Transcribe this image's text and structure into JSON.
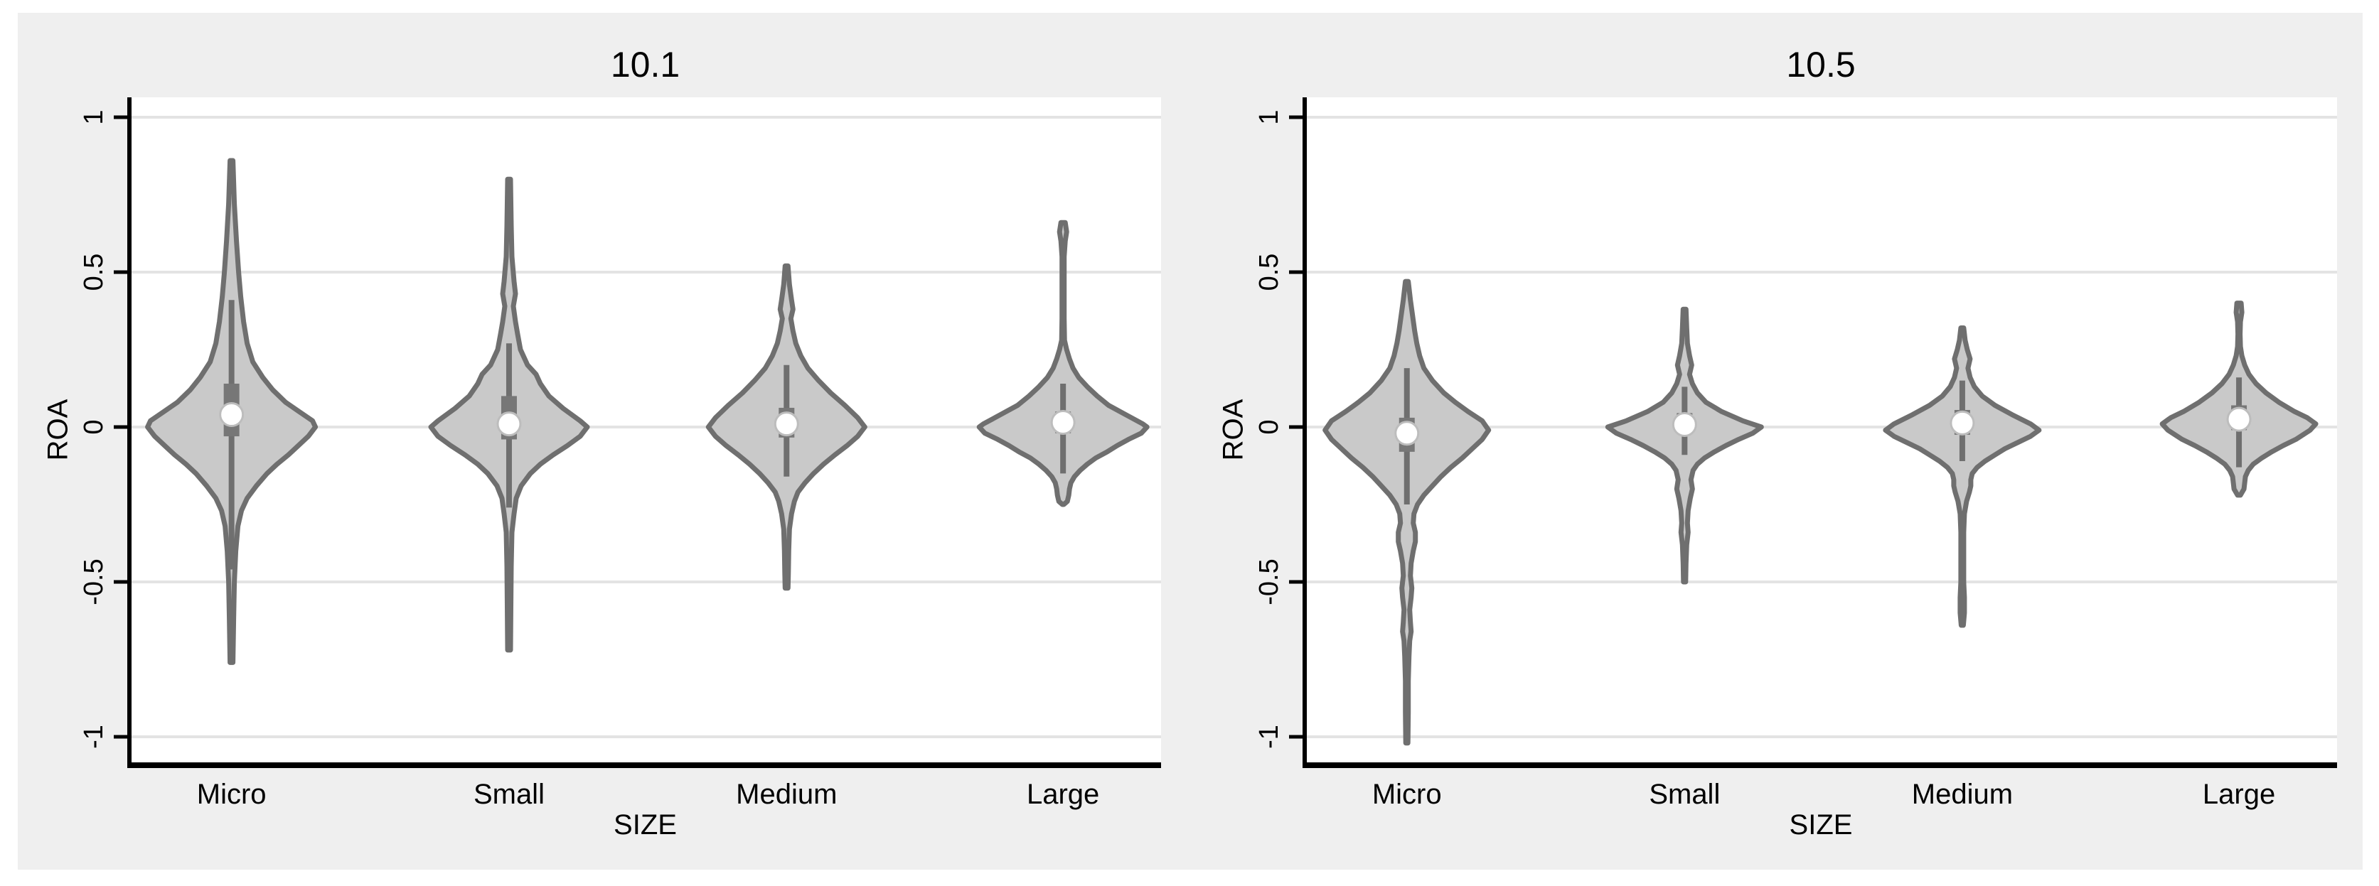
{
  "figure": {
    "description": "Two-panel violin plot of ROA by firm SIZE category",
    "page_background": "#ffffff",
    "figure_background": "#efefef",
    "plot_background": "#ffffff",
    "grid_color": "#e3e3e3",
    "axis_color": "#000000",
    "text_color": "#000000",
    "violin_fill": "#c9c9c9",
    "violin_stroke": "#6f6f6f",
    "box_color": "#777777",
    "spine_color": "#6f6f6f",
    "median_fill": "#ffffff",
    "median_ring": "#bdbdbd"
  },
  "chart_data": [
    {
      "type": "violin",
      "title": "10.1",
      "xlabel": "SIZE",
      "ylabel": "ROA",
      "categories": [
        "Micro",
        "Small",
        "Medium",
        "Large"
      ],
      "yticks": [
        {
          "value": 1,
          "label": "1"
        },
        {
          "value": 0.5,
          "label": "0.5"
        },
        {
          "value": 0,
          "label": "0"
        },
        {
          "value": -0.5,
          "label": "-0.5"
        },
        {
          "value": -1,
          "label": "-1"
        }
      ],
      "ylim": [
        -1.09,
        1.06
      ],
      "grid": true,
      "legend": "none",
      "violins": [
        {
          "category": "Micro",
          "median": 0.04,
          "q1": -0.03,
          "q3": 0.14,
          "whisker_low": -0.46,
          "whisker_high": 0.41,
          "min": -0.76,
          "max": 0.86,
          "profile": [
            [
              0.86,
              2
            ],
            [
              0.72,
              4
            ],
            [
              0.6,
              7
            ],
            [
              0.5,
              10
            ],
            [
              0.42,
              13
            ],
            [
              0.34,
              17
            ],
            [
              0.27,
              22
            ],
            [
              0.21,
              30
            ],
            [
              0.16,
              44
            ],
            [
              0.12,
              58
            ],
            [
              0.08,
              76
            ],
            [
              0.05,
              95
            ],
            [
              0.02,
              114
            ],
            [
              0.0,
              118
            ],
            [
              -0.03,
              108
            ],
            [
              -0.06,
              94
            ],
            [
              -0.09,
              80
            ],
            [
              -0.12,
              64
            ],
            [
              -0.15,
              50
            ],
            [
              -0.19,
              35
            ],
            [
              -0.23,
              22
            ],
            [
              -0.27,
              14
            ],
            [
              -0.32,
              9
            ],
            [
              -0.4,
              6
            ],
            [
              -0.5,
              4
            ],
            [
              -0.62,
              3
            ],
            [
              -0.76,
              2
            ]
          ]
        },
        {
          "category": "Small",
          "median": 0.01,
          "q1": -0.04,
          "q3": 0.1,
          "whisker_low": -0.26,
          "whisker_high": 0.27,
          "min": -0.72,
          "max": 0.8,
          "profile": [
            [
              0.8,
              2
            ],
            [
              0.65,
              3
            ],
            [
              0.55,
              4
            ],
            [
              0.47,
              7
            ],
            [
              0.43,
              9
            ],
            [
              0.39,
              6
            ],
            [
              0.34,
              9
            ],
            [
              0.3,
              12
            ],
            [
              0.25,
              16
            ],
            [
              0.2,
              26
            ],
            [
              0.17,
              38
            ],
            [
              0.14,
              44
            ],
            [
              0.1,
              56
            ],
            [
              0.06,
              76
            ],
            [
              0.02,
              100
            ],
            [
              0.0,
              110
            ],
            [
              -0.03,
              100
            ],
            [
              -0.06,
              82
            ],
            [
              -0.09,
              62
            ],
            [
              -0.12,
              44
            ],
            [
              -0.15,
              30
            ],
            [
              -0.19,
              17
            ],
            [
              -0.23,
              10
            ],
            [
              -0.28,
              7
            ],
            [
              -0.34,
              4
            ],
            [
              -0.45,
              3
            ],
            [
              -0.58,
              2.5
            ],
            [
              -0.72,
              2
            ]
          ]
        },
        {
          "category": "Medium",
          "median": 0.01,
          "q1": -0.034,
          "q3": 0.062,
          "whisker_low": -0.16,
          "whisker_high": 0.2,
          "min": -0.52,
          "max": 0.52,
          "profile": [
            [
              0.52,
              2
            ],
            [
              0.46,
              4
            ],
            [
              0.41,
              7
            ],
            [
              0.38,
              9
            ],
            [
              0.35,
              6
            ],
            [
              0.31,
              9
            ],
            [
              0.27,
              13
            ],
            [
              0.23,
              20
            ],
            [
              0.19,
              30
            ],
            [
              0.15,
              45
            ],
            [
              0.11,
              62
            ],
            [
              0.07,
              82
            ],
            [
              0.03,
              100
            ],
            [
              0.0,
              110
            ],
            [
              -0.03,
              100
            ],
            [
              -0.06,
              85
            ],
            [
              -0.09,
              68
            ],
            [
              -0.12,
              52
            ],
            [
              -0.15,
              38
            ],
            [
              -0.18,
              26
            ],
            [
              -0.21,
              16
            ],
            [
              -0.24,
              11
            ],
            [
              -0.28,
              7
            ],
            [
              -0.33,
              4
            ],
            [
              -0.4,
              3
            ],
            [
              -0.47,
              2.5
            ],
            [
              -0.52,
              2
            ]
          ]
        },
        {
          "category": "Large",
          "median": 0.015,
          "q1": -0.02,
          "q3": 0.05,
          "whisker_low": -0.15,
          "whisker_high": 0.14,
          "min": -0.25,
          "max": 0.66,
          "profile": [
            [
              0.66,
              3
            ],
            [
              0.63,
              5
            ],
            [
              0.6,
              3
            ],
            [
              0.55,
              1.5
            ],
            [
              0.45,
              1.5
            ],
            [
              0.35,
              1.5
            ],
            [
              0.28,
              2
            ],
            [
              0.25,
              5
            ],
            [
              0.22,
              9
            ],
            [
              0.19,
              14
            ],
            [
              0.16,
              22
            ],
            [
              0.13,
              34
            ],
            [
              0.1,
              48
            ],
            [
              0.07,
              64
            ],
            [
              0.04,
              88
            ],
            [
              0.01,
              112
            ],
            [
              0.0,
              118
            ],
            [
              -0.02,
              110
            ],
            [
              -0.04,
              92
            ],
            [
              -0.06,
              76
            ],
            [
              -0.08,
              62
            ],
            [
              -0.1,
              46
            ],
            [
              -0.12,
              34
            ],
            [
              -0.14,
              24
            ],
            [
              -0.16,
              16
            ],
            [
              -0.18,
              11
            ],
            [
              -0.2,
              9
            ],
            [
              -0.22,
              8
            ],
            [
              -0.24,
              6
            ],
            [
              -0.25,
              1
            ]
          ]
        }
      ]
    },
    {
      "type": "violin",
      "title": "10.5",
      "xlabel": "SIZE",
      "ylabel": "ROA",
      "categories": [
        "Micro",
        "Small",
        "Medium",
        "Large"
      ],
      "yticks": [
        {
          "value": 1,
          "label": "1"
        },
        {
          "value": 0.5,
          "label": "0.5"
        },
        {
          "value": 0,
          "label": "0"
        },
        {
          "value": -0.5,
          "label": "-0.5"
        },
        {
          "value": -1,
          "label": "-1"
        }
      ],
      "ylim": [
        -1.09,
        1.06
      ],
      "grid": true,
      "legend": "none",
      "violins": [
        {
          "category": "Micro",
          "median": -0.02,
          "q1": -0.08,
          "q3": 0.03,
          "whisker_low": -0.25,
          "whisker_high": 0.19,
          "min": -1.02,
          "max": 0.47,
          "profile": [
            [
              0.47,
              2
            ],
            [
              0.41,
              5
            ],
            [
              0.36,
              8
            ],
            [
              0.31,
              11
            ],
            [
              0.27,
              14
            ],
            [
              0.23,
              18
            ],
            [
              0.19,
              24
            ],
            [
              0.15,
              36
            ],
            [
              0.11,
              52
            ],
            [
              0.08,
              68
            ],
            [
              0.05,
              86
            ],
            [
              0.02,
              106
            ],
            [
              -0.01,
              115
            ],
            [
              -0.04,
              106
            ],
            [
              -0.07,
              92
            ],
            [
              -0.1,
              78
            ],
            [
              -0.13,
              62
            ],
            [
              -0.16,
              48
            ],
            [
              -0.19,
              36
            ],
            [
              -0.22,
              24
            ],
            [
              -0.25,
              15
            ],
            [
              -0.28,
              10
            ],
            [
              -0.31,
              9
            ],
            [
              -0.34,
              12
            ],
            [
              -0.37,
              12
            ],
            [
              -0.4,
              9
            ],
            [
              -0.44,
              6
            ],
            [
              -0.48,
              5
            ],
            [
              -0.52,
              7
            ],
            [
              -0.55,
              6
            ],
            [
              -0.59,
              4
            ],
            [
              -0.63,
              5
            ],
            [
              -0.66,
              6
            ],
            [
              -0.69,
              4
            ],
            [
              -0.74,
              3
            ],
            [
              -0.82,
              2
            ],
            [
              -0.92,
              2
            ],
            [
              -1.02,
              1.5
            ]
          ]
        },
        {
          "category": "Small",
          "median": 0.008,
          "q1": -0.018,
          "q3": 0.045,
          "whisker_low": -0.09,
          "whisker_high": 0.13,
          "min": -0.5,
          "max": 0.38,
          "profile": [
            [
              0.38,
              2
            ],
            [
              0.32,
              3
            ],
            [
              0.27,
              4
            ],
            [
              0.23,
              7
            ],
            [
              0.2,
              10
            ],
            [
              0.17,
              7
            ],
            [
              0.14,
              11
            ],
            [
              0.11,
              18
            ],
            [
              0.08,
              30
            ],
            [
              0.05,
              52
            ],
            [
              0.02,
              82
            ],
            [
              0.0,
              108
            ],
            [
              -0.02,
              96
            ],
            [
              -0.04,
              76
            ],
            [
              -0.06,
              58
            ],
            [
              -0.08,
              42
            ],
            [
              -0.1,
              28
            ],
            [
              -0.12,
              18
            ],
            [
              -0.14,
              12
            ],
            [
              -0.17,
              9
            ],
            [
              -0.2,
              11
            ],
            [
              -0.23,
              8
            ],
            [
              -0.27,
              5
            ],
            [
              -0.31,
              4
            ],
            [
              -0.34,
              5
            ],
            [
              -0.38,
              3
            ],
            [
              -0.44,
              2
            ],
            [
              -0.5,
              1.5
            ]
          ]
        },
        {
          "category": "Medium",
          "median": 0.013,
          "q1": -0.025,
          "q3": 0.055,
          "whisker_low": -0.11,
          "whisker_high": 0.15,
          "min": -0.64,
          "max": 0.32,
          "profile": [
            [
              0.32,
              2
            ],
            [
              0.28,
              4
            ],
            [
              0.25,
              7
            ],
            [
              0.22,
              11
            ],
            [
              0.19,
              8
            ],
            [
              0.16,
              11
            ],
            [
              0.13,
              17
            ],
            [
              0.1,
              28
            ],
            [
              0.07,
              46
            ],
            [
              0.04,
              70
            ],
            [
              0.01,
              96
            ],
            [
              -0.01,
              108
            ],
            [
              -0.03,
              96
            ],
            [
              -0.05,
              78
            ],
            [
              -0.07,
              60
            ],
            [
              -0.09,
              46
            ],
            [
              -0.11,
              32
            ],
            [
              -0.13,
              21
            ],
            [
              -0.15,
              14
            ],
            [
              -0.17,
              12
            ],
            [
              -0.19,
              12
            ],
            [
              -0.21,
              10
            ],
            [
              -0.24,
              6
            ],
            [
              -0.28,
              3
            ],
            [
              -0.34,
              2
            ],
            [
              -0.42,
              2
            ],
            [
              -0.5,
              2
            ],
            [
              -0.55,
              3
            ],
            [
              -0.6,
              3
            ],
            [
              -0.64,
              1.5
            ]
          ]
        },
        {
          "category": "Large",
          "median": 0.025,
          "q1": -0.01,
          "q3": 0.07,
          "whisker_low": -0.13,
          "whisker_high": 0.16,
          "min": -0.22,
          "max": 0.4,
          "profile": [
            [
              0.4,
              3
            ],
            [
              0.37,
              4
            ],
            [
              0.34,
              2
            ],
            [
              0.3,
              1.5
            ],
            [
              0.26,
              2
            ],
            [
              0.23,
              4
            ],
            [
              0.2,
              8
            ],
            [
              0.17,
              14
            ],
            [
              0.14,
              24
            ],
            [
              0.11,
              38
            ],
            [
              0.08,
              56
            ],
            [
              0.05,
              78
            ],
            [
              0.03,
              96
            ],
            [
              0.01,
              108
            ],
            [
              -0.01,
              100
            ],
            [
              -0.04,
              80
            ],
            [
              -0.06,
              62
            ],
            [
              -0.08,
              46
            ],
            [
              -0.1,
              32
            ],
            [
              -0.12,
              20
            ],
            [
              -0.14,
              13
            ],
            [
              -0.16,
              9
            ],
            [
              -0.18,
              8
            ],
            [
              -0.2,
              7
            ],
            [
              -0.22,
              2
            ]
          ]
        }
      ]
    }
  ]
}
